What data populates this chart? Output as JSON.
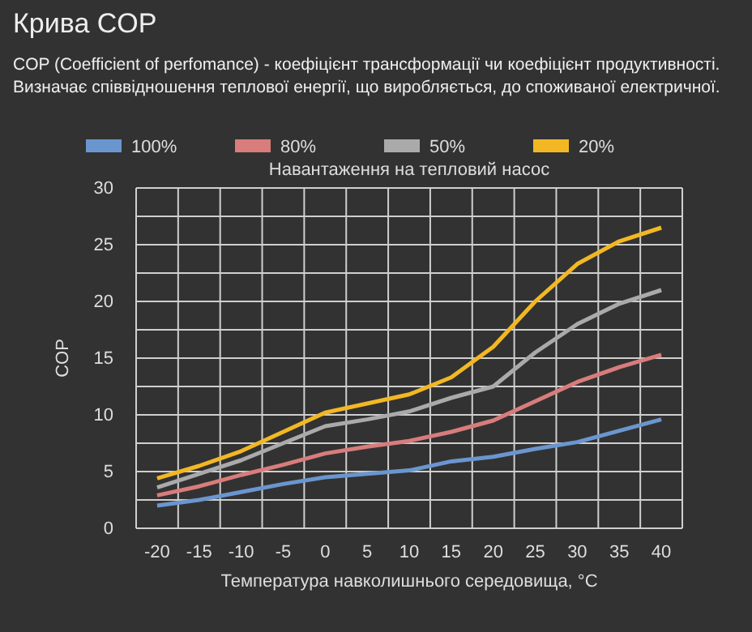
{
  "chart_data": {
    "type": "line",
    "title": "Крива COP",
    "subtitle": "COP (Coefficient of perfomance) - коефіцієнт трансформації чи коефіцієнт продуктивності. Визначає співвідношення теплової енергії, що виробляється, до споживаної електричної.",
    "xlabel": "Температура навколишнього середовища, °C",
    "ylabel": "COP",
    "legend_title": "Навантаження на тепловий насос",
    "categories": [
      "-20",
      "-15",
      "-10",
      "-5",
      "0",
      "5",
      "10",
      "15",
      "20",
      "25",
      "30",
      "35",
      "40"
    ],
    "series": [
      {
        "name": "100%",
        "color": "#6a96d0",
        "values": [
          2.0,
          2.5,
          3.2,
          3.9,
          4.5,
          4.8,
          5.1,
          5.9,
          6.3,
          7.0,
          7.6,
          8.6,
          9.6
        ]
      },
      {
        "name": "80%",
        "color": "#d87c7c",
        "values": [
          2.9,
          3.7,
          4.7,
          5.6,
          6.6,
          7.2,
          7.7,
          8.5,
          9.5,
          11.2,
          12.9,
          14.2,
          15.3
        ]
      },
      {
        "name": "50%",
        "color": "#aaaaaa",
        "values": [
          3.6,
          4.8,
          6.0,
          7.5,
          9.0,
          9.6,
          10.3,
          11.5,
          12.5,
          15.5,
          18.0,
          19.8,
          21.0
        ]
      },
      {
        "name": "20%",
        "color": "#f2b824",
        "values": [
          4.4,
          5.5,
          6.8,
          8.5,
          10.2,
          11.0,
          11.8,
          13.3,
          16.0,
          20.0,
          23.3,
          25.3,
          26.5
        ]
      }
    ],
    "ylim": [
      0,
      30
    ],
    "yticks": [
      0,
      {
        "value": 2.5,
        "label": null
      },
      5,
      {
        "value": 7.5,
        "label": null
      },
      10,
      {
        "value": 12.5,
        "label": null
      },
      15,
      {
        "value": 17.5,
        "label": null
      },
      20,
      {
        "value": 22.5,
        "label": null
      },
      25,
      {
        "value": 27.5,
        "label": null
      },
      30
    ],
    "grid": true,
    "legend": "top",
    "marker": "none",
    "line_style": "solid"
  }
}
